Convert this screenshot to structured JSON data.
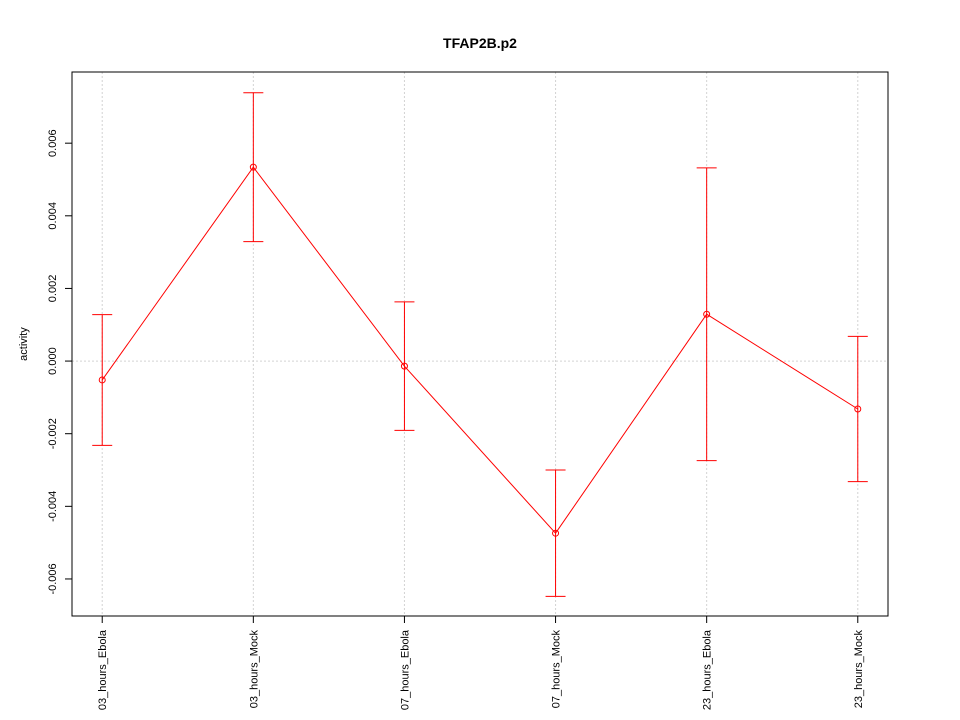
{
  "chart_data": {
    "type": "errorbar-line",
    "title": "TFAP2B.p2",
    "y_label": "activity",
    "categories": [
      "03_hours_Ebola",
      "03_hours_Mock",
      "07_hours_Ebola",
      "07_hours_Mock",
      "23_hours_Ebola",
      "23_hours_Mock"
    ],
    "values": [
      -0.00052,
      0.00534,
      -0.00014,
      -0.00474,
      0.00129,
      -0.00132
    ],
    "errors": [
      0.0018,
      0.00205,
      0.00177,
      0.00174,
      0.00403,
      0.002
    ],
    "color": "#ff0000",
    "ylim": [
      -0.00702,
      0.00796
    ],
    "yticks": [
      -0.006,
      -0.004,
      -0.002,
      {
        "value": 0,
        "label": "0.000"
      },
      0.002,
      0.004,
      0.006
    ],
    "grid": true,
    "reference_line": 0
  }
}
